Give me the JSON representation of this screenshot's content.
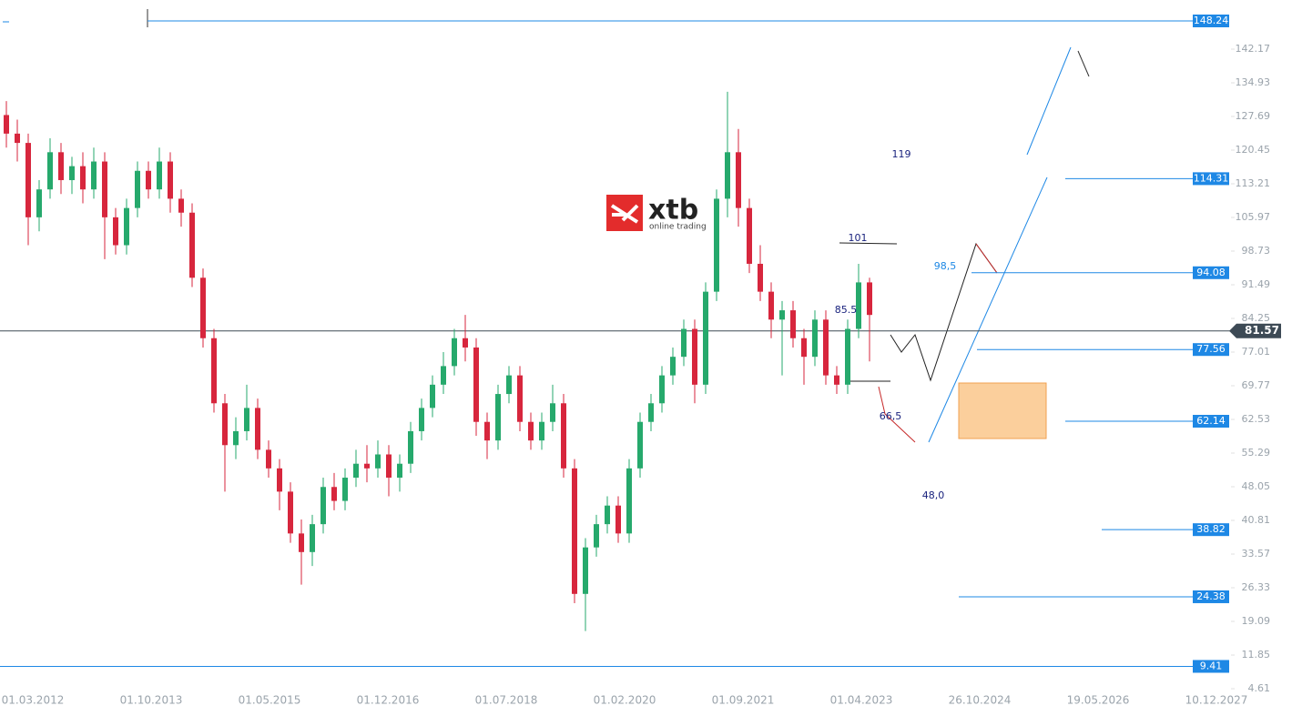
{
  "chart_data": {
    "type": "candlestick",
    "logo": {
      "name": "xtb",
      "tagline": "online trading"
    },
    "ylim": [
      -1.26,
      152.74
    ],
    "yticks": [
      142.17,
      134.93,
      127.69,
      120.45,
      113.21,
      105.97,
      98.73,
      91.49,
      84.25,
      77.01,
      69.77,
      62.53,
      55.29,
      48.05,
      40.81,
      33.57,
      26.33,
      19.09,
      11.85,
      4.61
    ],
    "xtick_labels": [
      "01.03.2012",
      "01.10.2013",
      "01.05.2015",
      "01.12.2016",
      "01.07.2018",
      "01.02.2020",
      "01.09.2021",
      "01.04.2023",
      "26.10.2024",
      "19.05.2026",
      "10.12.2027"
    ],
    "up_color": "#26a96c",
    "down_color": "#d7263d",
    "current_price": 81.57,
    "levels": [
      148.24,
      114.31,
      94.08,
      77.56,
      62.14,
      38.82,
      24.38,
      9.41
    ],
    "annotations": [
      "119",
      "101",
      "98,5",
      "85.5",
      "66,5",
      "48,0"
    ],
    "candles": [
      [
        128,
        131,
        121,
        124
      ],
      [
        124,
        127,
        118,
        122
      ],
      [
        122,
        124,
        100,
        106
      ],
      [
        106,
        114,
        103,
        112
      ],
      [
        112,
        123,
        110,
        120
      ],
      [
        120,
        122,
        111,
        114
      ],
      [
        114,
        119,
        111,
        117
      ],
      [
        117,
        120,
        109,
        112
      ],
      [
        112,
        121,
        110,
        118
      ],
      [
        118,
        120,
        97,
        106
      ],
      [
        106,
        108,
        98,
        100
      ],
      [
        100,
        110,
        98,
        108
      ],
      [
        108,
        118,
        106,
        116
      ],
      [
        116,
        118,
        110,
        112
      ],
      [
        112,
        121,
        110,
        118
      ],
      [
        118,
        120,
        107,
        110
      ],
      [
        110,
        112,
        104,
        107
      ],
      [
        107,
        109,
        91,
        93
      ],
      [
        93,
        95,
        78,
        80
      ],
      [
        80,
        82,
        64,
        66
      ],
      [
        66,
        68,
        47,
        57
      ],
      [
        57,
        63,
        54,
        60
      ],
      [
        60,
        70,
        58,
        65
      ],
      [
        65,
        67,
        54,
        56
      ],
      [
        56,
        58,
        50,
        52
      ],
      [
        52,
        54,
        43,
        47
      ],
      [
        47,
        49,
        36,
        38
      ],
      [
        38,
        41,
        27,
        34
      ],
      [
        34,
        42,
        31,
        40
      ],
      [
        40,
        50,
        38,
        48
      ],
      [
        48,
        51,
        43,
        45
      ],
      [
        45,
        52,
        43,
        50
      ],
      [
        50,
        56,
        48,
        53
      ],
      [
        53,
        57,
        49,
        52
      ],
      [
        52,
        58,
        50,
        55
      ],
      [
        55,
        57,
        46,
        50
      ],
      [
        50,
        55,
        47,
        53
      ],
      [
        53,
        62,
        51,
        60
      ],
      [
        60,
        67,
        58,
        65
      ],
      [
        65,
        72,
        63,
        70
      ],
      [
        70,
        77,
        68,
        74
      ],
      [
        74,
        82,
        72,
        80
      ],
      [
        80,
        85,
        75,
        78
      ],
      [
        78,
        80,
        59,
        62
      ],
      [
        62,
        64,
        54,
        58
      ],
      [
        58,
        70,
        56,
        68
      ],
      [
        68,
        74,
        66,
        72
      ],
      [
        72,
        74,
        60,
        62
      ],
      [
        62,
        64,
        56,
        58
      ],
      [
        58,
        64,
        56,
        62
      ],
      [
        62,
        70,
        60,
        66
      ],
      [
        66,
        68,
        50,
        52
      ],
      [
        52,
        54,
        23,
        25
      ],
      [
        25,
        37,
        17,
        35
      ],
      [
        35,
        42,
        33,
        40
      ],
      [
        40,
        46,
        38,
        44
      ],
      [
        44,
        46,
        36,
        38
      ],
      [
        38,
        54,
        36,
        52
      ],
      [
        52,
        64,
        50,
        62
      ],
      [
        62,
        68,
        60,
        66
      ],
      [
        66,
        74,
        64,
        72
      ],
      [
        72,
        78,
        70,
        76
      ],
      [
        76,
        84,
        74,
        82
      ],
      [
        82,
        84,
        66,
        70
      ],
      [
        70,
        92,
        68,
        90
      ],
      [
        90,
        112,
        88,
        110
      ],
      [
        110,
        133,
        106,
        120
      ],
      [
        120,
        125,
        104,
        108
      ],
      [
        108,
        110,
        94,
        96
      ],
      [
        96,
        100,
        88,
        90
      ],
      [
        90,
        92,
        80,
        84
      ],
      [
        84,
        88,
        72,
        86
      ],
      [
        86,
        88,
        78,
        80
      ],
      [
        80,
        82,
        70,
        76
      ],
      [
        76,
        86,
        74,
        84
      ],
      [
        84,
        86,
        70,
        72
      ],
      [
        72,
        74,
        68,
        70
      ],
      [
        70,
        84,
        68,
        82
      ],
      [
        82,
        96,
        80,
        92
      ],
      [
        92,
        93,
        75,
        85
      ]
    ]
  }
}
